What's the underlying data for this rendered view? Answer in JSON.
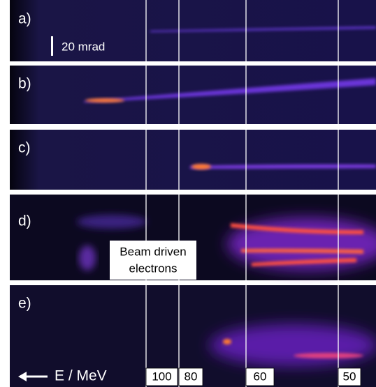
{
  "panels": [
    {
      "label": "a)"
    },
    {
      "label": "b)"
    },
    {
      "label": "c)"
    },
    {
      "label": "d)"
    },
    {
      "label": "e)"
    }
  ],
  "scale_bar": "20 mrad",
  "annotation": {
    "lines": [
      "Beam driven",
      "electrons"
    ]
  },
  "energy_axis": {
    "label": "E / MeV",
    "ticks": [
      100,
      80,
      60,
      50
    ]
  }
}
